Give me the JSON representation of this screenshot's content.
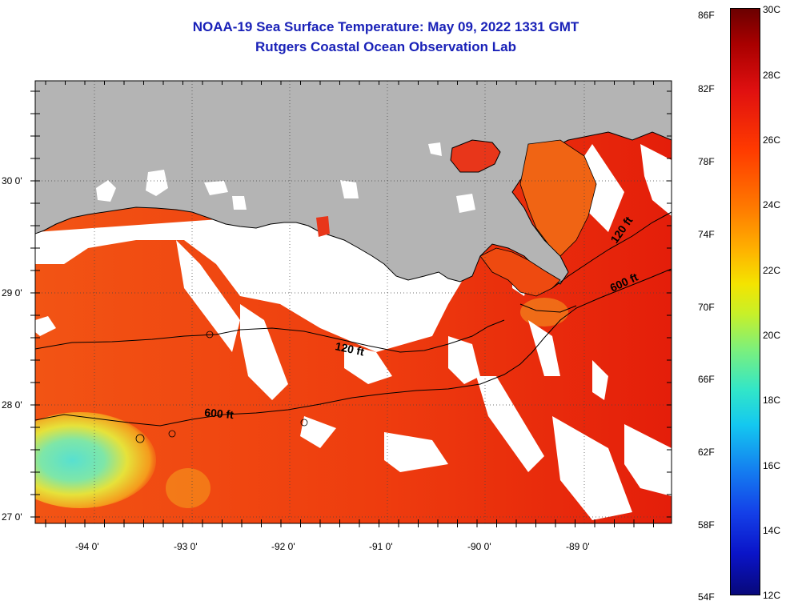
{
  "header": {
    "title": "NOAA-19 Sea Surface Temperature:  May 09, 2022 1331 GMT",
    "subtitle": "Rutgers Coastal Ocean Observation Lab"
  },
  "map": {
    "region": "Northern Gulf of Mexico",
    "lon_range": [
      -94.55,
      -88.2
    ],
    "lat_range": [
      26.95,
      30.8
    ],
    "lon_ticks": [
      "-94 0'",
      "-93 0'",
      "-92 0'",
      "-91 0'",
      "-90 0'",
      "-89 0'"
    ],
    "lat_ticks": [
      "30 0'",
      "29 0'",
      "28 0'",
      "27 0'"
    ],
    "contours": [
      {
        "label": "120 ft"
      },
      {
        "label": "600 ft"
      },
      {
        "label": "120 ft"
      },
      {
        "label": "600 ft"
      }
    ],
    "colors": {
      "land": "#b4b4b4",
      "cloud": "#ffffff",
      "sea_warm": "#f04a10",
      "sea_hot": "#e81e0a",
      "cool_patch": "#4fd6c8"
    }
  },
  "colorbar": {
    "f_labels": [
      "86F",
      "82F",
      "78F",
      "74F",
      "70F",
      "66F",
      "62F",
      "58F",
      "54F"
    ],
    "c_labels": [
      "30C",
      "28C",
      "26C",
      "24C",
      "22C",
      "20C",
      "18C",
      "16C",
      "14C",
      "12C"
    ],
    "range_c": [
      12,
      30
    ],
    "range_f": [
      54,
      86
    ]
  }
}
